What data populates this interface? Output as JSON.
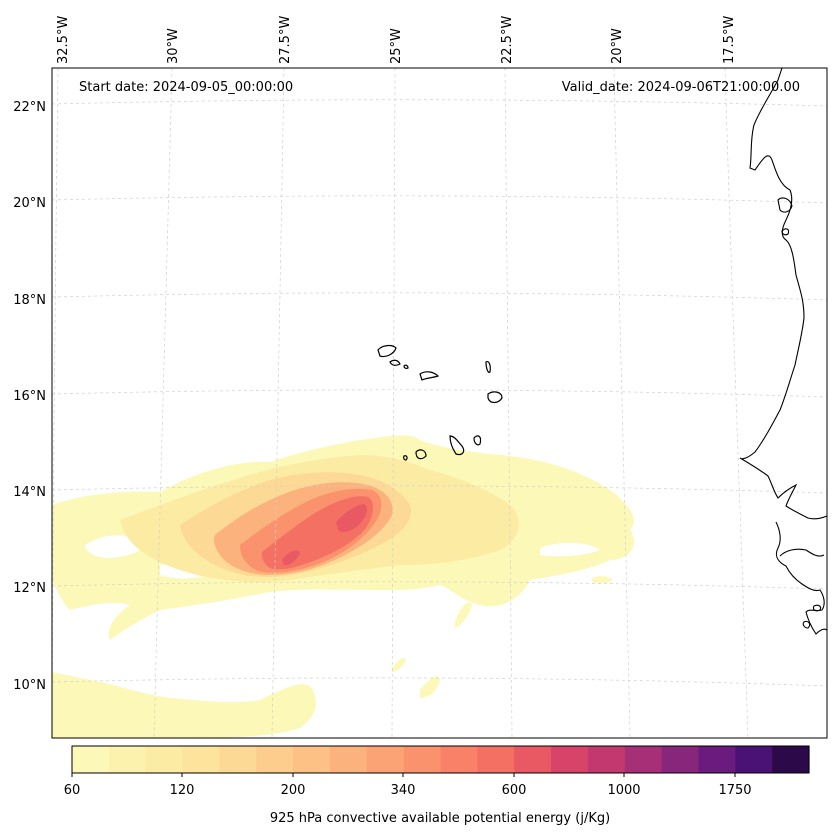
{
  "header": {
    "start_date": "Start date: 2024-09-05_00:00:00",
    "valid_date": "Valid_date: 2024-09-06T21:00:00.00"
  },
  "lon_labels": [
    "32.5°W",
    "30°W",
    "27.5°W",
    "25°W",
    "22.5°W",
    "20°W",
    "17.5°W"
  ],
  "lat_labels": [
    "22°N",
    "20°N",
    "18°N",
    "16°N",
    "14°N",
    "12°N",
    "10°N"
  ],
  "colorbar": {
    "label": "925 hPa convective available potential energy (j/Kg)",
    "tick_labels": [
      "60",
      "120",
      "200",
      "340",
      "600",
      "1000",
      "1750"
    ],
    "colors": [
      "#fcf8b8",
      "#fcf2ad",
      "#fceba3",
      "#fde39b",
      "#fdd996",
      "#fdcd8d",
      "#fdc085",
      "#fcb27d",
      "#fca375",
      "#fb926e",
      "#f98168",
      "#f37063",
      "#e95963",
      "#d84469",
      "#c3386f",
      "#a72f78",
      "#88267b",
      "#6a1b7d",
      "#4b1276",
      "#2c0a49"
    ]
  },
  "cape_colors": {
    "lightest": "#fcf8b8",
    "light": "#fceba3",
    "mid": "#fdd996",
    "orange": "#fcb27d",
    "salmon": "#fb926e",
    "red": "#f37063",
    "deep": "#e95963"
  }
}
